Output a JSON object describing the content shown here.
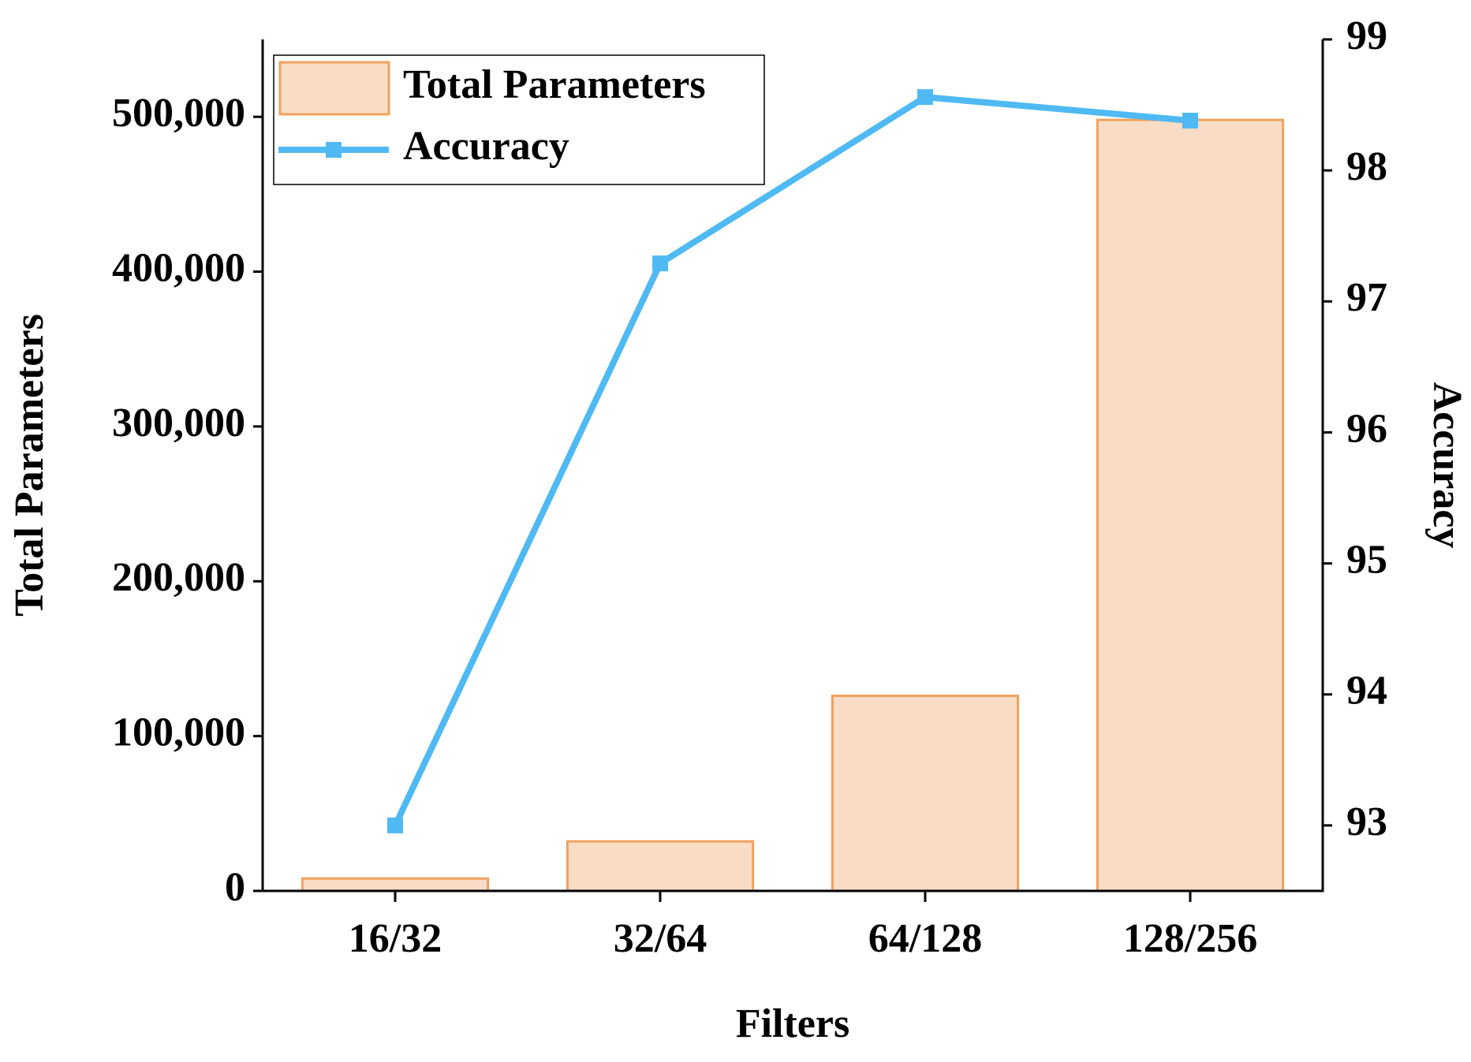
{
  "chart_data": {
    "type": "bar",
    "x_label": "Filters",
    "y_label": "Total Parameters",
    "y2_label": "Accuracy",
    "categories": [
      "16/32",
      "32/64",
      "64/128",
      "128/256"
    ],
    "series": [
      {
        "name": "Total Parameters",
        "type": "bar",
        "color": "#f9dcc6",
        "edge_color": "#f0a25e",
        "values": [
          8000,
          32000,
          126000,
          498000
        ]
      },
      {
        "name": "Accuracy",
        "type": "line",
        "axis": "y2",
        "color": "#4fb9f3",
        "values": [
          93.0,
          97.29,
          98.56,
          98.38
        ]
      }
    ],
    "ylim": [
      0,
      550000
    ],
    "yticks": [
      0,
      {
        "value": 100000,
        "label": "100,000"
      },
      {
        "value": 200000,
        "label": "200,000"
      },
      {
        "value": 300000,
        "label": "300,000"
      },
      {
        "value": 400000,
        "label": "400,000"
      },
      {
        "value": 500000,
        "label": "500,000"
      }
    ],
    "y2lim": [
      92.5,
      99
    ],
    "y2ticks": [
      93,
      94,
      95,
      96,
      97,
      98,
      99
    ],
    "legend": "upper left",
    "grid": false
  }
}
